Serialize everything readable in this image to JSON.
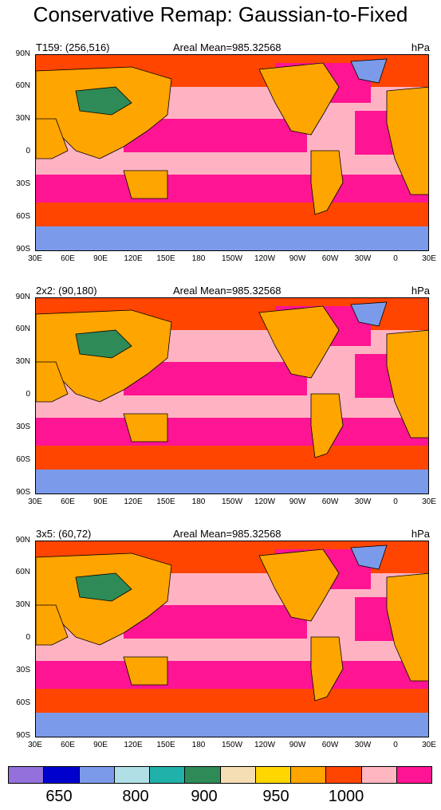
{
  "title": "Conservative Remap: Gaussian-to-Fixed",
  "panels": [
    {
      "grid_label": "T159: (256,516)",
      "mean_label": "Areal Mean=985.32568",
      "units": "hPa"
    },
    {
      "grid_label": "2x2: (90,180)",
      "mean_label": "Areal Mean=985.32568",
      "units": "hPa"
    },
    {
      "grid_label": "3x5: (60,72)",
      "mean_label": "Areal Mean=985.32568",
      "units": "hPa"
    }
  ],
  "lat_labels": [
    "90N",
    "60N",
    "30N",
    "0",
    "30S",
    "60S",
    "90S"
  ],
  "lon_labels": [
    "30E",
    "60E",
    "90E",
    "120E",
    "150E",
    "180",
    "150W",
    "120W",
    "90W",
    "60W",
    "30W",
    "0",
    "30E"
  ],
  "colorbar": {
    "colors": [
      "#9370db",
      "#0000cd",
      "#7b9bea",
      "#b0e0e6",
      "#20b2aa",
      "#2e8b57",
      "#f5deb3",
      "#ffd700",
      "#ffa500",
      "#ff4500",
      "#ffb6c1",
      "#ff1493"
    ],
    "labels": [
      "650",
      "800",
      "900",
      "950",
      "1000"
    ]
  },
  "palette": {
    "ocean_high": "#ff1493",
    "ocean_mid": "#ffb6c1",
    "ocean_low": "#ff4500",
    "antarctica": "#7b9bea",
    "plateau": "#2e8b57",
    "land_mid": "#ffa500"
  }
}
